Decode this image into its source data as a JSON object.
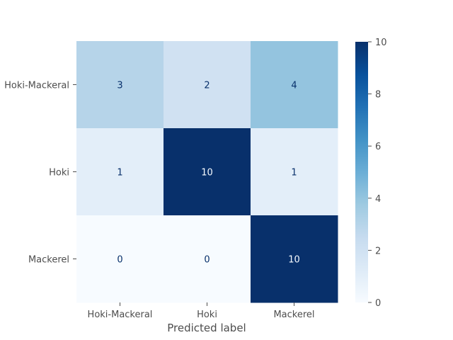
{
  "chart_data": {
    "type": "heatmap",
    "title": "",
    "xlabel": "Predicted label",
    "ylabel": "",
    "x_categories": [
      "Hoki-Mackeral",
      "Hoki",
      "Mackerel"
    ],
    "y_categories": [
      "Hoki-Mackeral",
      "Hoki",
      "Mackerel"
    ],
    "values": [
      [
        3,
        2,
        4
      ],
      [
        1,
        10,
        1
      ],
      [
        0,
        0,
        10
      ]
    ],
    "colormap": "Blues",
    "colorbar": {
      "min": 0,
      "max": 10,
      "ticks": [
        "0",
        "2",
        "4",
        "6",
        "8",
        "10"
      ]
    },
    "grid": false
  }
}
